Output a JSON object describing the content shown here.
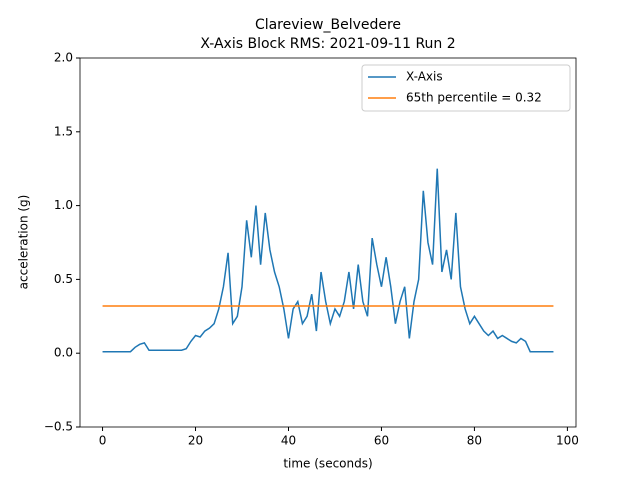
{
  "chart_data": {
    "type": "line",
    "title": "Clareview_Belvedere",
    "subtitle": "X-Axis Block RMS: 2021-09-11 Run 2",
    "x_label": "time (seconds)",
    "y_label": "acceleration (g)",
    "xlim": [
      -4.85,
      101.85
    ],
    "ylim": [
      -0.5,
      2.0
    ],
    "xticks": [
      0,
      20,
      40,
      60,
      80,
      100
    ],
    "yticks": [
      {
        "value": -0.5,
        "label": "−0.5"
      },
      {
        "value": 0,
        "label": "0.0"
      },
      {
        "value": 0.5,
        "label": "0.5"
      },
      {
        "value": 1,
        "label": "1.0"
      },
      {
        "value": 1.5,
        "label": "1.5"
      },
      {
        "value": 2,
        "label": "2.0"
      }
    ],
    "legend": "upper right",
    "series": [
      {
        "name": "X-Axis",
        "color": "#1f77b4",
        "x": [
          0,
          1,
          2,
          3,
          4,
          5,
          6,
          7,
          8,
          9,
          10,
          11,
          12,
          13,
          14,
          15,
          16,
          17,
          18,
          19,
          20,
          21,
          22,
          23,
          24,
          25,
          26,
          27,
          28,
          29,
          30,
          31,
          32,
          33,
          34,
          35,
          36,
          37,
          38,
          39,
          40,
          41,
          42,
          43,
          44,
          45,
          46,
          47,
          48,
          49,
          50,
          51,
          52,
          53,
          54,
          55,
          56,
          57,
          58,
          59,
          60,
          61,
          62,
          63,
          64,
          65,
          66,
          67,
          68,
          69,
          70,
          71,
          72,
          73,
          74,
          75,
          76,
          77,
          78,
          79,
          80,
          81,
          82,
          83,
          84,
          85,
          86,
          87,
          88,
          89,
          90,
          91,
          92,
          93,
          94,
          95,
          96,
          97
        ],
        "values": [
          0.01,
          0.01,
          0.01,
          0.01,
          0.01,
          0.01,
          0.01,
          0.04,
          0.06,
          0.07,
          0.02,
          0.02,
          0.02,
          0.02,
          0.02,
          0.02,
          0.02,
          0.02,
          0.03,
          0.08,
          0.12,
          0.11,
          0.15,
          0.17,
          0.2,
          0.3,
          0.45,
          0.68,
          0.2,
          0.25,
          0.45,
          0.9,
          0.65,
          1.0,
          0.6,
          0.95,
          0.7,
          0.55,
          0.45,
          0.3,
          0.1,
          0.3,
          0.35,
          0.2,
          0.25,
          0.4,
          0.15,
          0.55,
          0.35,
          0.2,
          0.3,
          0.25,
          0.35,
          0.55,
          0.3,
          0.6,
          0.35,
          0.25,
          0.78,
          0.6,
          0.45,
          0.65,
          0.45,
          0.2,
          0.35,
          0.45,
          0.1,
          0.35,
          0.5,
          1.1,
          0.75,
          0.6,
          1.25,
          0.55,
          0.7,
          0.5,
          0.95,
          0.45,
          0.3,
          0.2,
          0.25,
          0.2,
          0.15,
          0.12,
          0.15,
          0.1,
          0.12,
          0.1,
          0.08,
          0.07,
          0.1,
          0.08,
          0.01,
          0.01,
          0.01,
          0.01,
          0.01,
          0.01
        ]
      },
      {
        "name": "65th percentile = 0.32",
        "color": "#ff7f0e",
        "x": [
          0,
          97
        ],
        "values": [
          0.32,
          0.32
        ]
      }
    ]
  }
}
